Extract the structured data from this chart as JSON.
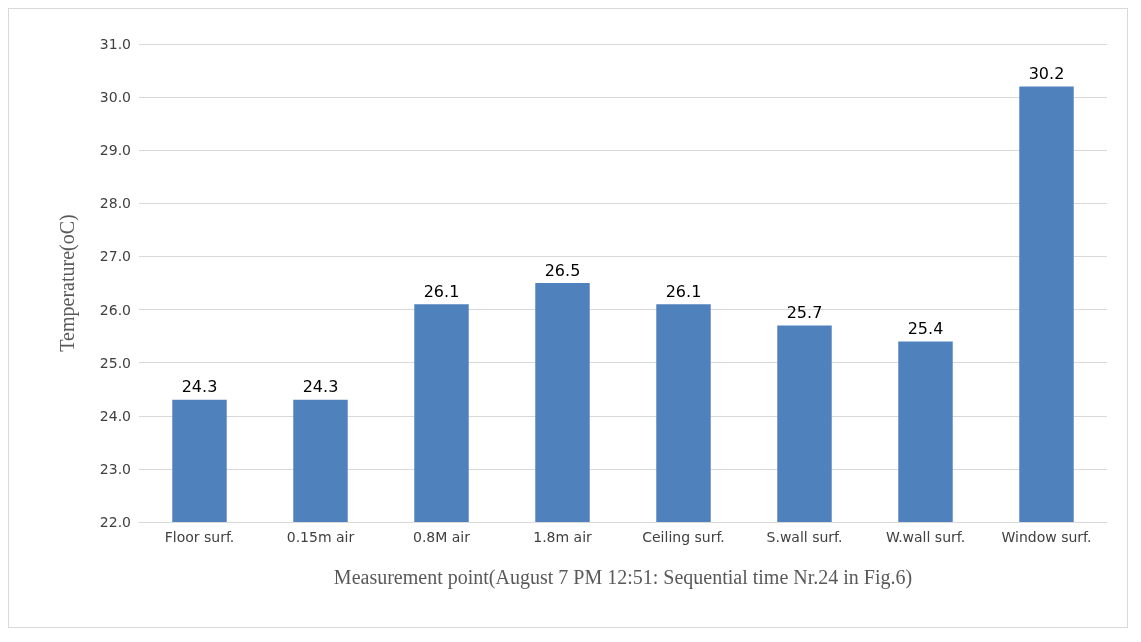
{
  "chart_data": {
    "type": "bar",
    "xlabel": "Measurement point(August 7 PM 12:51: Sequential time Nr.24 in Fig.6)",
    "ylabel": "Temperature(oC)",
    "categories": [
      "Floor surf.",
      "0.15m air",
      "0.8M air",
      "1.8m air",
      "Ceiling surf.",
      "S.wall surf.",
      "W.wall surf.",
      "Window surf."
    ],
    "values": [
      24.3,
      24.3,
      26.1,
      26.5,
      26.1,
      25.7,
      25.4,
      30.2
    ],
    "color": "#4f81bd",
    "data_labels": true,
    "ylim": [
      22,
      31
    ],
    "yticks": [
      {
        "value": 22,
        "label": "22.0"
      },
      {
        "value": 23,
        "label": "23.0"
      },
      {
        "value": 24,
        "label": "24.0"
      },
      {
        "value": 25,
        "label": "25.0"
      },
      {
        "value": 26,
        "label": "26.0"
      },
      {
        "value": 27,
        "label": "27.0"
      },
      {
        "value": 28,
        "label": "28.0"
      },
      {
        "value": 29,
        "label": "29.0"
      },
      {
        "value": 30,
        "label": "30.0"
      },
      {
        "value": 31,
        "label": "31.0"
      }
    ],
    "grid": "y"
  }
}
